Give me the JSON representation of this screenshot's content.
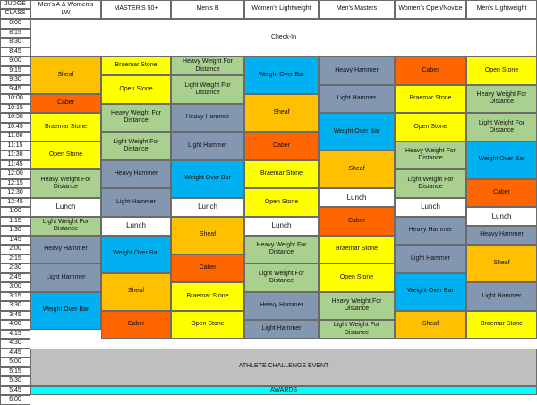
{
  "header": {
    "judge_label": "JUDGE",
    "class_label": "CLASS",
    "columns": [
      "Men's A & Women's LW",
      "MASTER'S 50+",
      "Men's B",
      "Women's Lightweight",
      "Men's Masters",
      "Women's Open/Novice",
      "Men's Lightweight"
    ]
  },
  "times": [
    "8:00",
    "8:15",
    "8:30",
    "8:45",
    "9:00",
    "9:15",
    "9:30",
    "9:45",
    "10:00",
    "10:15",
    "10:30",
    "10:45",
    "11:00",
    "11:15",
    "11:30",
    "11:45",
    "12:00",
    "12:15",
    "12:30",
    "12:45",
    "1:00",
    "1:15",
    "1:30",
    "1:45",
    "2:00",
    "2:15",
    "2:30",
    "2:45",
    "3:00",
    "3:15",
    "3:30",
    "3:45",
    "4:00",
    "4:15",
    "4:30",
    "4:45",
    "5:00",
    "5:15",
    "5:30",
    "5:45",
    "6:00"
  ],
  "spanning": {
    "checkin": "Check-In",
    "challenge": "ATHLETE CHALLENGE EVENT",
    "awards": "AWARDS"
  },
  "colors": {
    "sheaf": "#ffc000",
    "caber": "#ff6600",
    "braemar": "#ffff00",
    "open": "#ffff00",
    "hwfd": "#a9d08e",
    "lwfd": "#a9d08e",
    "hh": "#8497b0",
    "lh": "#8497b0",
    "wob": "#00b0f0",
    "lunch": "#ffffff",
    "challenge": "#bfbfbf",
    "awards": "#00ffff"
  },
  "labels": {
    "sheaf": "Sheaf",
    "caber": "Caber",
    "braemar": "Braemar Stone",
    "open": "Open Stone",
    "hwfd": "Heavy Weight For Distance",
    "lwfd": "Light Weight For Distance",
    "hh": "Heavy Hammer",
    "lh": "Light Hammer",
    "wob": "Weight Over Bar",
    "lunch": "Lunch"
  },
  "schedule": [
    [
      [
        "sheaf",
        4
      ],
      [
        "caber",
        2
      ],
      [
        "braemar",
        3
      ],
      [
        "open",
        3
      ],
      [
        "hwfd",
        3
      ],
      [
        "lunch",
        2
      ],
      [
        "lwfd",
        2
      ],
      [
        "hh",
        3
      ],
      [
        "lh",
        3
      ],
      [
        "wob",
        4
      ]
    ],
    [
      [
        "braemar",
        2
      ],
      [
        "open",
        3
      ],
      [
        "hwfd",
        3
      ],
      [
        "lwfd",
        3
      ],
      [
        "hh",
        3
      ],
      [
        "lh",
        3
      ],
      [
        "lunch",
        2
      ],
      [
        "wob",
        4
      ],
      [
        "sheaf",
        4
      ],
      [
        "caber",
        3
      ]
    ],
    [
      [
        "hwfd",
        2
      ],
      [
        "lwfd",
        3
      ],
      [
        "hh",
        3
      ],
      [
        "lh",
        3
      ],
      [
        "wob",
        4
      ],
      [
        "lunch",
        2
      ],
      [
        "sheaf",
        4
      ],
      [
        "caber",
        3
      ],
      [
        "braemar",
        3
      ],
      [
        "open",
        3
      ]
    ],
    [
      [
        "wob",
        4
      ],
      [
        "sheaf",
        4
      ],
      [
        "caber",
        3
      ],
      [
        "braemar",
        3
      ],
      [
        "open",
        3
      ],
      [
        "lunch",
        2
      ],
      [
        "hwfd",
        3
      ],
      [
        "lwfd",
        3
      ],
      [
        "hh",
        3
      ],
      [
        "lh",
        2
      ]
    ],
    [
      [
        "hh",
        3
      ],
      [
        "lh",
        3
      ],
      [
        "wob",
        4
      ],
      [
        "sheaf",
        4
      ],
      [
        "lunch",
        2
      ],
      [
        "caber",
        3
      ],
      [
        "braemar",
        3
      ],
      [
        "open",
        3
      ],
      [
        "hwfd",
        3
      ],
      [
        "lwfd",
        2
      ]
    ],
    [
      [
        "caber",
        3
      ],
      [
        "braemar",
        3
      ],
      [
        "open",
        3
      ],
      [
        "hwfd",
        3
      ],
      [
        "lwfd",
        3
      ],
      [
        "lunch",
        2
      ],
      [
        "hh",
        3
      ],
      [
        "lh",
        3
      ],
      [
        "wob",
        4
      ],
      [
        "sheaf",
        3
      ]
    ],
    [
      [
        "open",
        3
      ],
      [
        "hwfd",
        3
      ],
      [
        "lwfd",
        3
      ],
      [
        "wob",
        4
      ],
      [
        "caber",
        3
      ],
      [
        "lunch",
        2
      ],
      [
        "hh",
        2
      ],
      [
        "sheaf",
        4
      ],
      [
        "lh",
        3
      ],
      [
        "braemar",
        3
      ]
    ]
  ]
}
